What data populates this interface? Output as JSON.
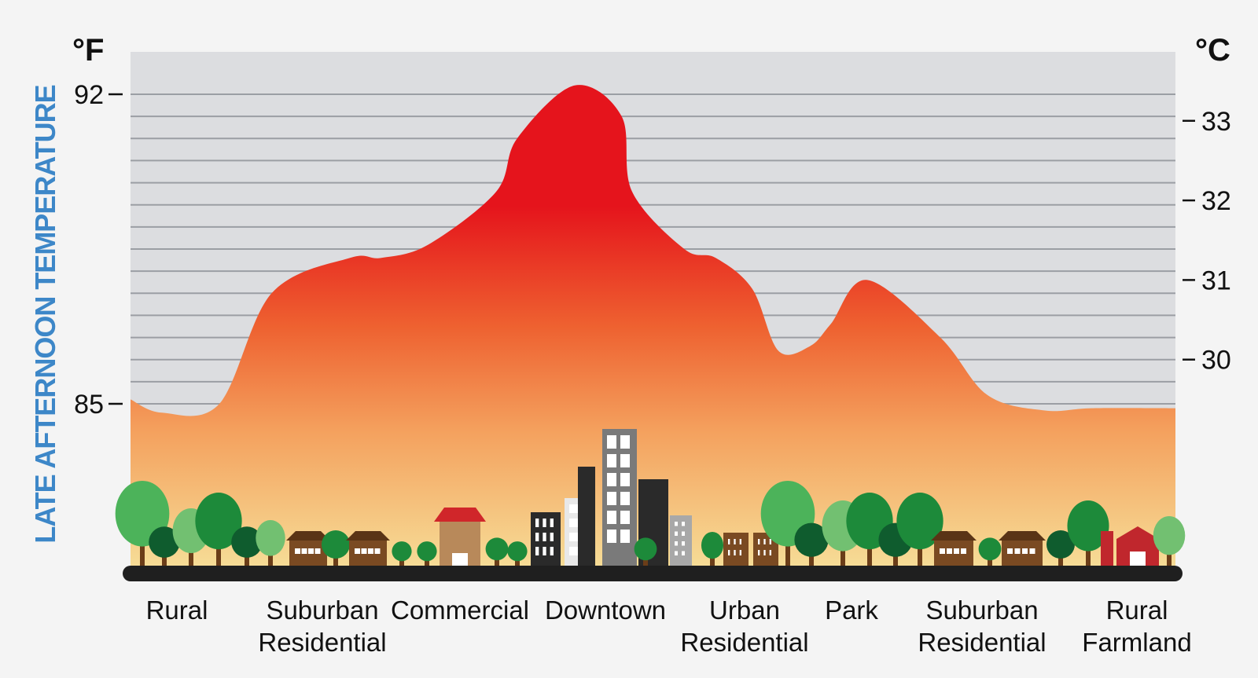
{
  "chart_data": {
    "type": "area",
    "title": "",
    "ylabel": "LATE AFTERNOON TEMPERATURE",
    "y_unit_left": "°F",
    "y_unit_right": "°C",
    "ylim_f": [
      80.5,
      93.5
    ],
    "left_ticks": [
      92,
      85
    ],
    "right_ticks": [
      33,
      32,
      31,
      30
    ],
    "grid": true,
    "categories": [
      "Rural",
      "Suburban Residential",
      "Commercial",
      "Downtown",
      "Urban Residential",
      "Park",
      "Suburban Residential",
      "Rural Farmland"
    ],
    "category_labels": [
      "Rural",
      "Suburban\nResidential",
      "Commercial",
      "Downtown",
      "Urban\nResidential",
      "Park",
      "Suburban\nResidential",
      "Rural\nFarmland"
    ],
    "series": [
      {
        "x": [
          0,
          3,
          8.5,
          13.5,
          21,
          24,
          28.5,
          35,
          37,
          42.5,
          47,
          48,
          53,
          56,
          59.5,
          62,
          65,
          67,
          70.5,
          77.5,
          82,
          87.5,
          92,
          100
        ],
        "values": [
          85.1,
          84.8,
          85,
          87.5,
          88.3,
          88.3,
          88.6,
          89.8,
          91,
          92.2,
          91.5,
          89.8,
          88.5,
          88.3,
          87.6,
          86.2,
          86.3,
          86.8,
          87.8,
          86.5,
          85.2,
          84.85,
          84.9,
          84.9
        ]
      }
    ],
    "colors": {
      "hot": "#e5141c",
      "warm": "#ee6130",
      "mild": "#f4a15e",
      "cool": "#f6dc96",
      "grid": "#9b9ea4",
      "plot_bg": "#dcdde0",
      "ground": "#1f1f1f"
    }
  }
}
